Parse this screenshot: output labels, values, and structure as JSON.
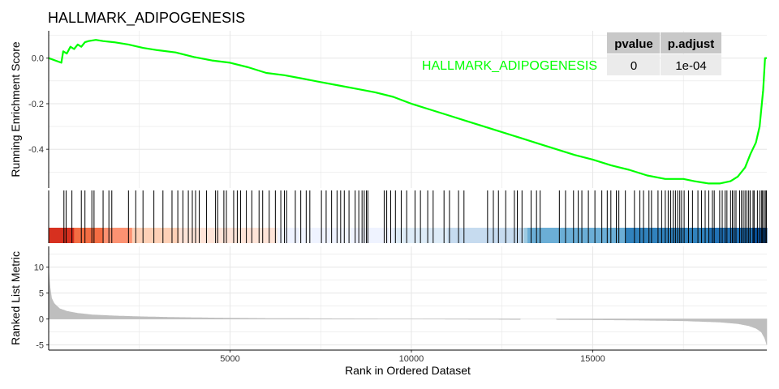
{
  "colors": {
    "curve": "#00FF00",
    "hits": "#000000",
    "metric_bars": "#BEBEBE",
    "grid": "#E6E6E6",
    "axis": "#000000",
    "table_header_bg": "#C8C8C8",
    "table_cell_bg": "#EBEBEB",
    "heatmap": [
      "#D7301F",
      "#F46D43",
      "#FC9272",
      "#FDD0B6",
      "#FEE4D8",
      "#EFF3FF",
      "#DDEBF7",
      "#C6DBEF",
      "#9ECAE1",
      "#6BAED6",
      "#3182BD",
      "#2171B5",
      "#08519C"
    ]
  },
  "chart_data": {
    "type": "line",
    "title": "HALLMARK_ADIPOGENESIS",
    "gene_set_label": "HALLMARK_ADIPOGENESIS",
    "n_genes": 19800,
    "table": {
      "headers": [
        "pvalue",
        "p.adjust"
      ],
      "values": [
        "0",
        "1e-04"
      ]
    },
    "panels": [
      {
        "name": "running-score",
        "ylabel": "Running Enrichment Score",
        "ylim": [
          -0.57,
          0.12
        ],
        "yticks": [
          0.0,
          -0.2,
          -0.4
        ],
        "ytick_labels": [
          "0.0",
          "-0.2",
          "-0.4"
        ],
        "series": [
          {
            "x": [
              0,
              350,
              400,
              500,
              600,
              700,
              800,
              900,
              1000,
              1100,
              1300,
              1500,
              1800,
              2200,
              2600,
              3000,
              3500,
              4000,
              4500,
              5000,
              5500,
              6000,
              6500,
              7000,
              7500,
              8000,
              8500,
              9000,
              9500,
              10000,
              10500,
              11000,
              11500,
              12000,
              12500,
              13000,
              13500,
              14000,
              14500,
              15000,
              15500,
              16000,
              16500,
              17000,
              17500,
              17800,
              18000,
              18200,
              18500,
              18800,
              19000,
              19200,
              19350,
              19500,
              19600,
              19700,
              19750,
              19800
            ],
            "y": [
              0.0,
              -0.02,
              0.03,
              0.02,
              0.05,
              0.04,
              0.06,
              0.05,
              0.07,
              0.075,
              0.08,
              0.075,
              0.07,
              0.06,
              0.045,
              0.035,
              0.025,
              0.005,
              -0.01,
              -0.02,
              -0.04,
              -0.065,
              -0.075,
              -0.09,
              -0.105,
              -0.12,
              -0.135,
              -0.15,
              -0.17,
              -0.2,
              -0.225,
              -0.25,
              -0.275,
              -0.3,
              -0.325,
              -0.35,
              -0.375,
              -0.4,
              -0.425,
              -0.445,
              -0.47,
              -0.49,
              -0.515,
              -0.53,
              -0.53,
              -0.54,
              -0.545,
              -0.55,
              -0.55,
              -0.54,
              -0.52,
              -0.48,
              -0.42,
              -0.37,
              -0.3,
              -0.14,
              0.0,
              0.0
            ]
          }
        ]
      },
      {
        "name": "hits",
        "hit_ranks": [
          420,
          480,
          640,
          900,
          1000,
          1190,
          1250,
          1500,
          1660,
          1740,
          2200,
          2400,
          2600,
          2900,
          3150,
          3400,
          3560,
          3700,
          3850,
          3960,
          4050,
          4150,
          4350,
          4600,
          4660,
          4830,
          4900,
          5100,
          5200,
          5290,
          5450,
          5600,
          5800,
          5900,
          6080,
          6250,
          6400,
          6500,
          6560,
          6800,
          6950,
          7100,
          7200,
          7520,
          7650,
          7800,
          7950,
          8050,
          8150,
          8280,
          8450,
          8550,
          8640,
          8700,
          8760,
          8800,
          9250,
          9320,
          9430,
          9560,
          9720,
          9870,
          10100,
          10250,
          10450,
          10600,
          10900,
          11050,
          11300,
          11450,
          12100,
          12260,
          12400,
          12600,
          12840,
          12920,
          13050,
          13300,
          13450,
          13550,
          14080,
          14250,
          14470,
          14600,
          14700,
          14880,
          15060,
          15250,
          15400,
          15500,
          15650,
          15720,
          15900,
          16150,
          16300,
          16400,
          16550,
          16620,
          16800,
          16900,
          17000,
          17080,
          17150,
          17220,
          17280,
          17340,
          17400,
          17450,
          17520,
          17640,
          17750,
          17900,
          18000,
          18100,
          18200,
          18300,
          18350,
          18500,
          18570,
          18650,
          18700,
          18800,
          18850,
          18900,
          18950,
          19050,
          19100,
          19150,
          19200,
          19250,
          19300,
          19340,
          19420,
          19450,
          19540,
          19600,
          19650,
          19680,
          19720,
          19760,
          19790
        ]
      },
      {
        "name": "ranked-list-metric",
        "ylabel": "Ranked List Metric",
        "ylim": [
          -6,
          14
        ],
        "yticks": [
          10,
          5,
          0,
          -5
        ],
        "ytick_labels": [
          "10",
          "5",
          "0",
          "-5"
        ],
        "xlabel": "Rank in Ordered Dataset",
        "xlim": [
          0,
          19800
        ],
        "xticks": [
          5000,
          10000,
          15000
        ],
        "xtick_labels": [
          "5000",
          "10000",
          "15000"
        ],
        "gap_range": [
          13000,
          14000
        ],
        "profile": {
          "x": [
            0,
            30,
            80,
            150,
            300,
            500,
            800,
            1200,
            1800,
            2500,
            3500,
            4500,
            6000,
            8000,
            10000,
            12000,
            13000,
            14000,
            16000,
            17500,
            18500,
            19000,
            19300,
            19500,
            19650,
            19750,
            19800
          ],
          "y": [
            9.5,
            6.5,
            4.0,
            3.0,
            2.0,
            1.5,
            1.1,
            0.8,
            0.6,
            0.45,
            0.3,
            0.2,
            0.1,
            0.05,
            0.0,
            -0.05,
            -0.1,
            -0.1,
            -0.2,
            -0.35,
            -0.6,
            -0.9,
            -1.3,
            -1.8,
            -2.5,
            -3.8,
            -5.0
          ]
        }
      }
    ]
  }
}
